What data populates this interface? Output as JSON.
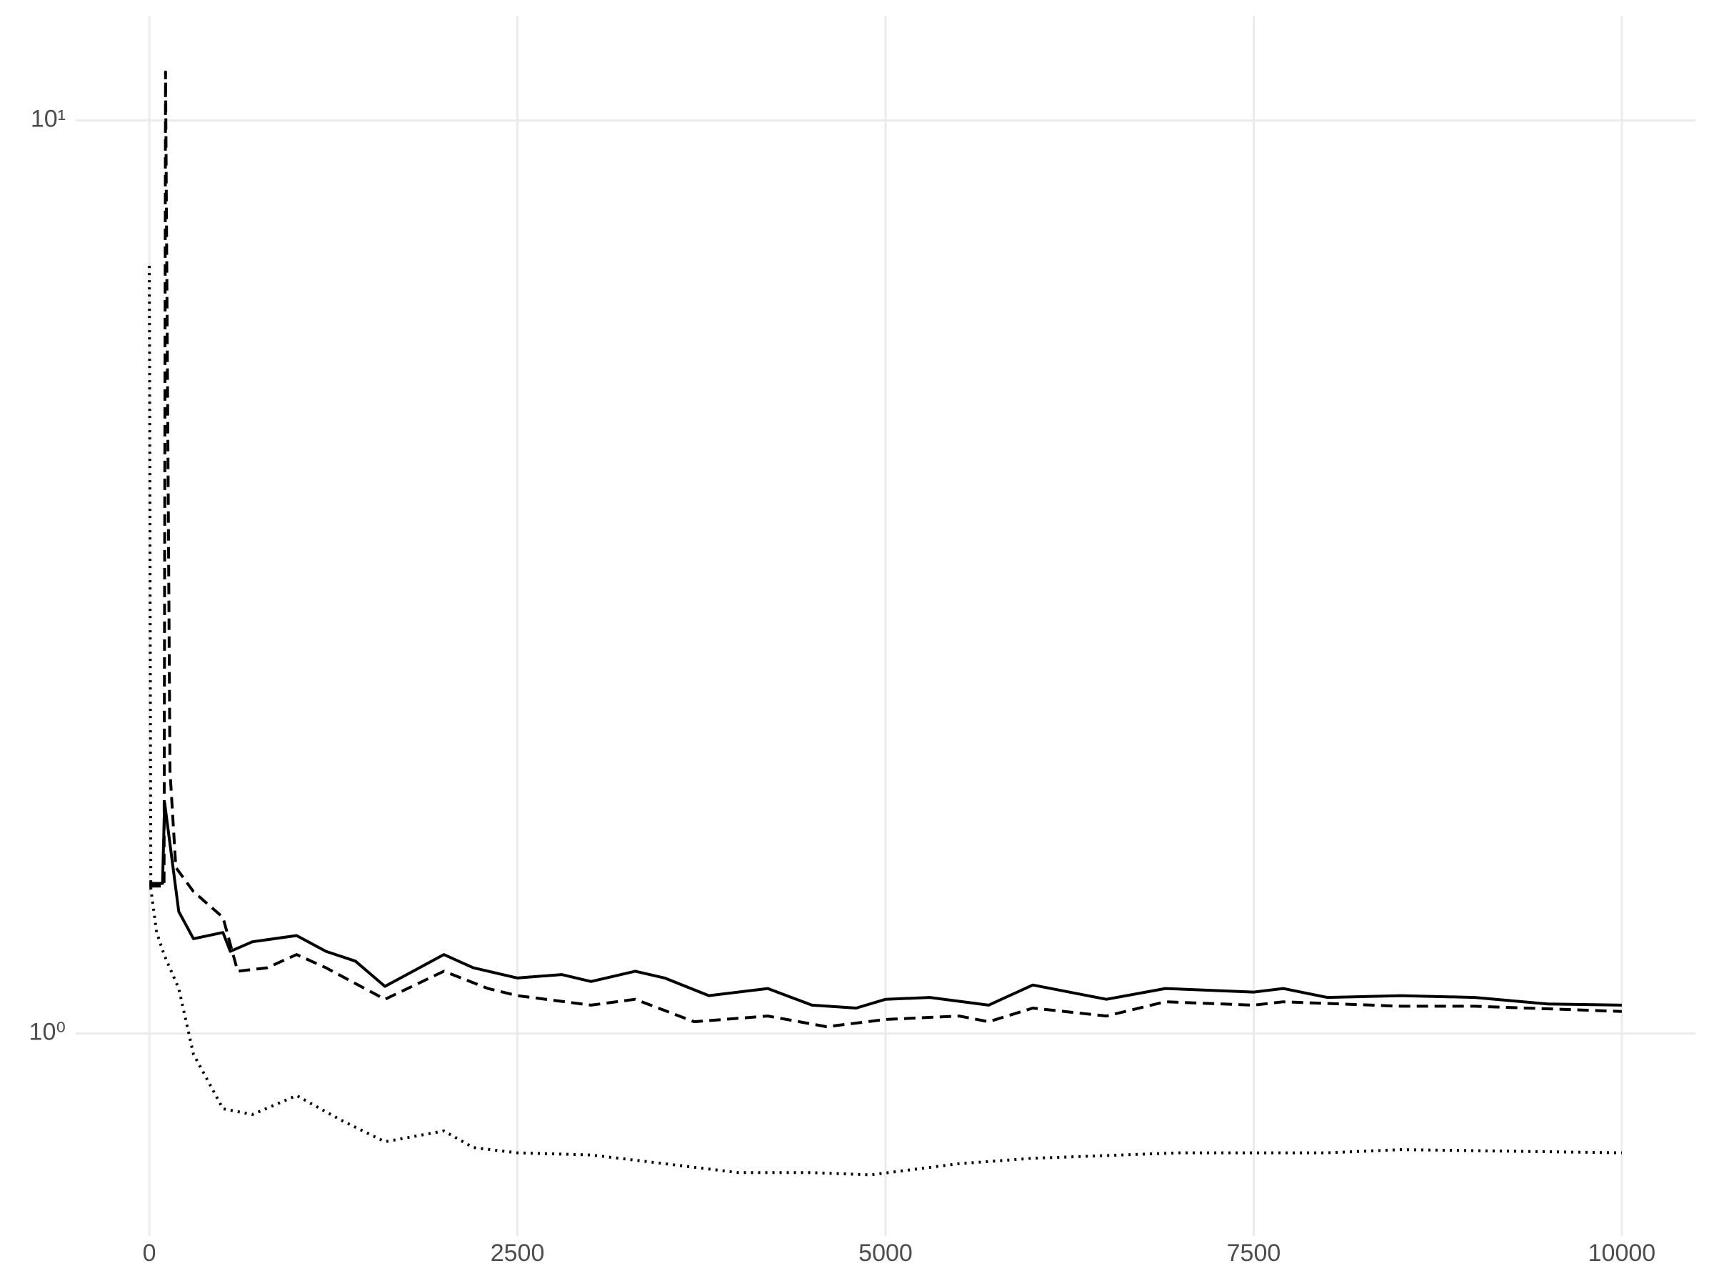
{
  "chart_data": {
    "type": "line",
    "xlim": [
      -500,
      10500
    ],
    "xticks": [
      0,
      2500,
      5000,
      7500,
      10000
    ],
    "ylim": [
      0.6,
      13
    ],
    "yticks": [
      {
        "value": 1,
        "label": "10⁰"
      },
      {
        "value": 10,
        "label": "10¹"
      }
    ],
    "log_y": true,
    "grid": true,
    "series": [
      {
        "color": "#000000",
        "dash": "solid",
        "x": [
          0,
          90,
          104,
          200,
          300,
          500,
          550,
          700,
          1000,
          1200,
          1400,
          1600,
          2000,
          2200,
          2500,
          2800,
          3000,
          3300,
          3500,
          3800,
          4200,
          4500,
          4800,
          5000,
          5300,
          5700,
          6000,
          6500,
          6900,
          7500,
          7700,
          8000,
          8500,
          9000,
          9500,
          10000
        ],
        "values": [
          1.46,
          1.46,
          1.79,
          1.36,
          1.27,
          1.29,
          1.23,
          1.26,
          1.28,
          1.23,
          1.2,
          1.126,
          1.22,
          1.18,
          1.15,
          1.16,
          1.14,
          1.17,
          1.15,
          1.1,
          1.12,
          1.074,
          1.066,
          1.09,
          1.095,
          1.074,
          1.13,
          1.09,
          1.12,
          1.11,
          1.12,
          1.095,
          1.1,
          1.095,
          1.077,
          1.074
        ]
      },
      {
        "color": "#000000",
        "dash": "dashed",
        "x": [
          0,
          100,
          110,
          140,
          180,
          300,
          500,
          600,
          800,
          1000,
          1200,
          1600,
          2000,
          2300,
          2500,
          3000,
          3300,
          3700,
          4200,
          4600,
          5000,
          5500,
          5700,
          6000,
          6500,
          6900,
          7500,
          7700,
          8500,
          9000,
          10000
        ],
        "values": [
          1.45,
          1.45,
          11.3,
          1.94,
          1.52,
          1.43,
          1.34,
          1.17,
          1.18,
          1.22,
          1.18,
          1.09,
          1.17,
          1.12,
          1.1,
          1.074,
          1.09,
          1.03,
          1.045,
          1.017,
          1.036,
          1.045,
          1.03,
          1.066,
          1.045,
          1.083,
          1.074,
          1.083,
          1.071,
          1.071,
          1.057
        ]
      },
      {
        "color": "#000000",
        "dash": "dotted",
        "x": [
          0,
          10,
          50,
          100,
          200,
          300,
          400,
          500,
          700,
          1000,
          1300,
          1600,
          2000,
          2200,
          2500,
          3000,
          3500,
          4000,
          4500,
          4900,
          5500,
          6000,
          7000,
          8000,
          8500,
          10000
        ],
        "values": [
          6.93,
          1.44,
          1.29,
          1.22,
          1.12,
          0.949,
          0.886,
          0.827,
          0.815,
          0.855,
          0.804,
          0.761,
          0.782,
          0.75,
          0.74,
          0.736,
          0.72,
          0.704,
          0.704,
          0.7,
          0.72,
          0.73,
          0.74,
          0.74,
          0.746,
          0.74
        ]
      }
    ]
  }
}
